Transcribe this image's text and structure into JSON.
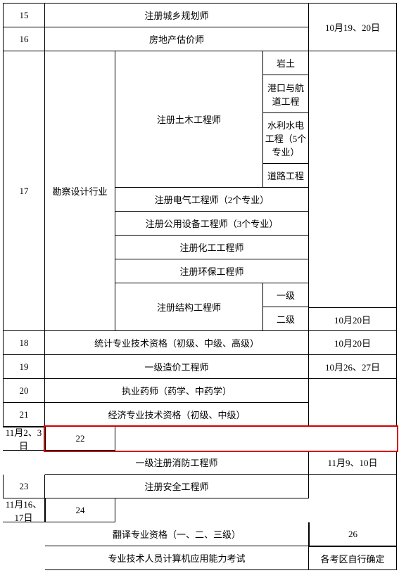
{
  "highlight_color": "#d00000",
  "rows": {
    "r15": "15",
    "r16": "16",
    "r17": "17",
    "r18": "18",
    "r19": "19",
    "r20": "20",
    "r21": "21",
    "r22": "22",
    "r23": "23",
    "r24": "24",
    "r26": "26"
  },
  "cells": {
    "c15_name": "注册城乡规划师",
    "c15_date": "10月19、20日",
    "c16_name": "房地产估价师",
    "c17_industry": "勘察设计行业",
    "c17_civil": "注册土木工程师",
    "c17_civil_1": "岩土",
    "c17_civil_2": "港口与航道工程",
    "c17_civil_3": "水利水电工程（5个专业）",
    "c17_civil_4": "道路工程",
    "c17_elec": "注册电气工程师（2个专业）",
    "c17_util": "注册公用设备工程师（3个专业）",
    "c17_chem": "注册化工工程师",
    "c17_env": "注册环保工程师",
    "c17_struct": "注册结构工程师",
    "c17_struct_1": "一级",
    "c17_struct_2": "二级",
    "c17_struct_2_date": "10月20日",
    "c18_name": "统计专业技术资格（初级、中级、高级）",
    "c18_date": "10月20日",
    "c19_name": "一级造价工程师",
    "c19_date": "10月26、27日",
    "c20_name": "执业药师（药学、中药学）",
    "c21_name": "经济专业技术资格（初级、中级）",
    "c21_date": "11月2、3日",
    "c22_name": "一级注册消防工程师",
    "c22_date": "11月9、10日",
    "c23_name": "注册安全工程师",
    "c23_date": "11月16、17日",
    "c24_name": "翻译专业资格（一、二、三级）",
    "c26_name": "专业技术人员计算机应用能力考试",
    "c26_date": "各考区自行确定"
  }
}
